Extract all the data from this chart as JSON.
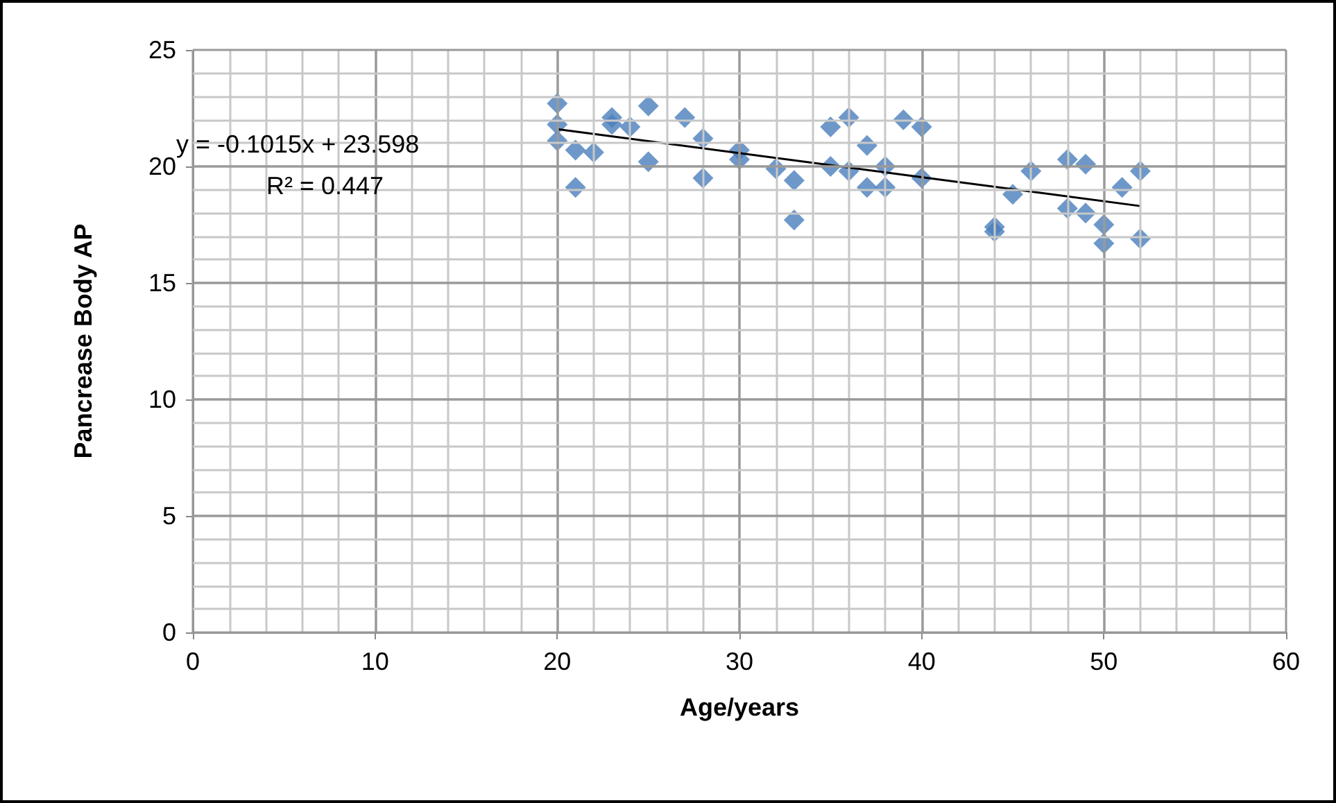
{
  "chart_data": {
    "type": "scatter",
    "xlabel": "Age/years",
    "ylabel": "Pancrease Body AP",
    "xlim": [
      0,
      60
    ],
    "xticks": [
      0,
      10,
      20,
      30,
      40,
      50,
      60
    ],
    "ylim": [
      0,
      25
    ],
    "yticks": [
      0,
      5,
      10,
      15,
      20,
      25
    ],
    "grid": true,
    "marker": "diamond",
    "annotations": [
      "y = -0.1015x + 23.598",
      "R² = 0.447"
    ],
    "series": [
      {
        "color": "#4a7ebb",
        "x": [
          20,
          20,
          20,
          21,
          21,
          22,
          23,
          23,
          24,
          25,
          25,
          27,
          28,
          28,
          30,
          30,
          32,
          33,
          33,
          35,
          35,
          36,
          36,
          37,
          37,
          38,
          38,
          39,
          40,
          40,
          44,
          44,
          45,
          46,
          48,
          48,
          49,
          49,
          50,
          50,
          51,
          52,
          52
        ],
        "values": [
          22.7,
          21.8,
          21.1,
          20.7,
          19.1,
          20.6,
          22.1,
          21.8,
          21.7,
          22.6,
          20.2,
          22.1,
          21.2,
          19.5,
          20.7,
          20.3,
          19.9,
          19.4,
          17.7,
          21.7,
          20.0,
          22.1,
          19.8,
          20.9,
          19.1,
          20.0,
          19.1,
          22.0,
          21.7,
          19.5,
          17.4,
          17.2,
          18.8,
          19.8,
          20.3,
          18.2,
          20.1,
          18.0,
          17.5,
          16.7,
          19.1,
          19.8,
          16.9
        ]
      },
      {
        "type": "line",
        "color": "#000000",
        "marker": "none",
        "x": [
          20,
          52
        ],
        "values": [
          21.6,
          18.3
        ]
      }
    ]
  }
}
